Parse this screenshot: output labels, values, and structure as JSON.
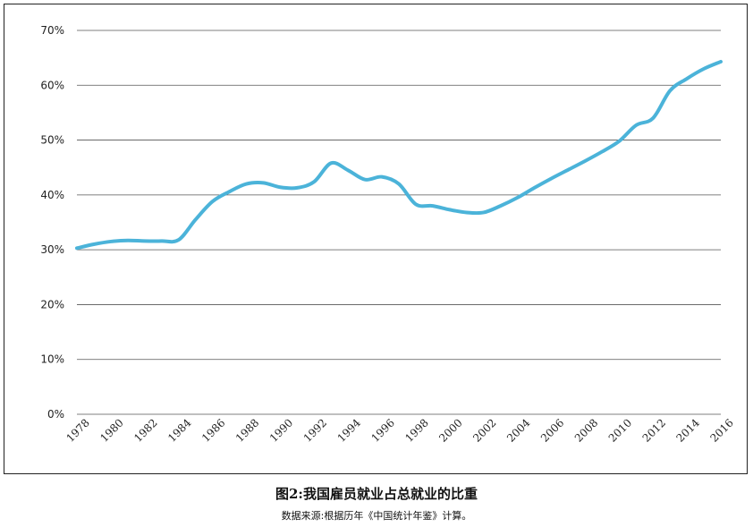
{
  "caption": {
    "title": "图2:我国雇员就业占总就业的比重",
    "source": "数据来源:根据历年《中国统计年鉴》计算。"
  },
  "colors": {
    "line": "#4bb3d9",
    "grid": "#555555",
    "text": "#222222"
  },
  "chart_data": {
    "type": "line",
    "title": "",
    "xlabel": "",
    "ylabel": "",
    "ylim": [
      0,
      70
    ],
    "xlim": [
      1978,
      2016
    ],
    "grid": true,
    "legend": "none",
    "y_ticks": [
      "0%",
      "10%",
      "20%",
      "30%",
      "40%",
      "50%",
      "60%",
      "70%"
    ],
    "y_tick_values": [
      0,
      10,
      20,
      30,
      40,
      50,
      60,
      70
    ],
    "x_ticks": [
      "1978",
      "1980",
      "1982",
      "1984",
      "1986",
      "1988",
      "1990",
      "1992",
      "1994",
      "1996",
      "1998",
      "2000",
      "2002",
      "2004",
      "2006",
      "2008",
      "2010",
      "2012",
      "2014",
      "2016"
    ],
    "x_tick_values": [
      1978,
      1980,
      1982,
      1984,
      1986,
      1988,
      1990,
      1992,
      1994,
      1996,
      1998,
      2000,
      2002,
      2004,
      2006,
      2008,
      2010,
      2012,
      2014,
      2016
    ],
    "x": [
      1978,
      1979,
      1980,
      1981,
      1982,
      1983,
      1984,
      1985,
      1986,
      1987,
      1988,
      1989,
      1990,
      1991,
      1992,
      1993,
      1994,
      1995,
      1996,
      1997,
      1998,
      1999,
      2000,
      2001,
      2002,
      2003,
      2004,
      2005,
      2006,
      2007,
      2008,
      2009,
      2010,
      2011,
      2012,
      2013,
      2014,
      2015,
      2016
    ],
    "series": [
      {
        "values": [
          30.3,
          31.0,
          31.5,
          31.7,
          31.6,
          31.6,
          31.8,
          35.5,
          38.8,
          40.6,
          42.0,
          42.2,
          41.4,
          41.3,
          42.4,
          45.8,
          44.5,
          42.8,
          43.3,
          42.0,
          38.3,
          38.0,
          37.3,
          36.8,
          36.8,
          38.0,
          39.5,
          41.3,
          43.0,
          44.6,
          46.2,
          47.9,
          49.8,
          52.7,
          54.0,
          59.0,
          61.2,
          63.0,
          64.3
        ]
      }
    ]
  }
}
